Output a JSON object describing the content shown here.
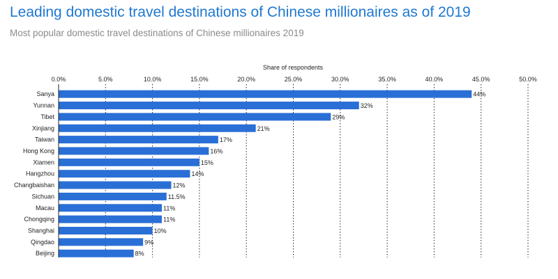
{
  "header": {
    "title": "Leading domestic travel destinations of Chinese millionaires as of 2019",
    "subtitle": "Most popular domestic travel destinations of Chinese millionaires 2019"
  },
  "chart_data": {
    "type": "bar",
    "orientation": "horizontal",
    "xlabel": "Share of respondents",
    "xlim": [
      0,
      50
    ],
    "x_ticks": [
      0,
      5,
      10,
      15,
      20,
      25,
      30,
      35,
      40,
      45,
      50
    ],
    "x_tick_labels": [
      "0.0%",
      "5.0%",
      "10.0%",
      "15.0%",
      "20.0%",
      "25.0%",
      "30.0%",
      "35.0%",
      "40.0%",
      "45.0%",
      "50.0%"
    ],
    "x_axis_position": "top",
    "grid": "vertical-dotted",
    "bar_color": "#2a6fd6",
    "categories": [
      "Sanya",
      "Yunnan",
      "Tibet",
      "Xinjiang",
      "Taiwan",
      "Hong Kong",
      "Xiamen",
      "Hangzhou",
      "Changbaishan",
      "Sichuan",
      "Macau",
      "Chongqing",
      "Shanghai",
      "Qingdao",
      "Beijing"
    ],
    "values": [
      44,
      32,
      29,
      21,
      17,
      16,
      15,
      14,
      12,
      11.5,
      11,
      11,
      10,
      9,
      8
    ],
    "data_labels": [
      "44%",
      "32%",
      "29%",
      "21%",
      "17%",
      "16%",
      "15%",
      "14%",
      "12%",
      "11.5%",
      "11%",
      "11%",
      "10%",
      "9%",
      "8%"
    ]
  }
}
